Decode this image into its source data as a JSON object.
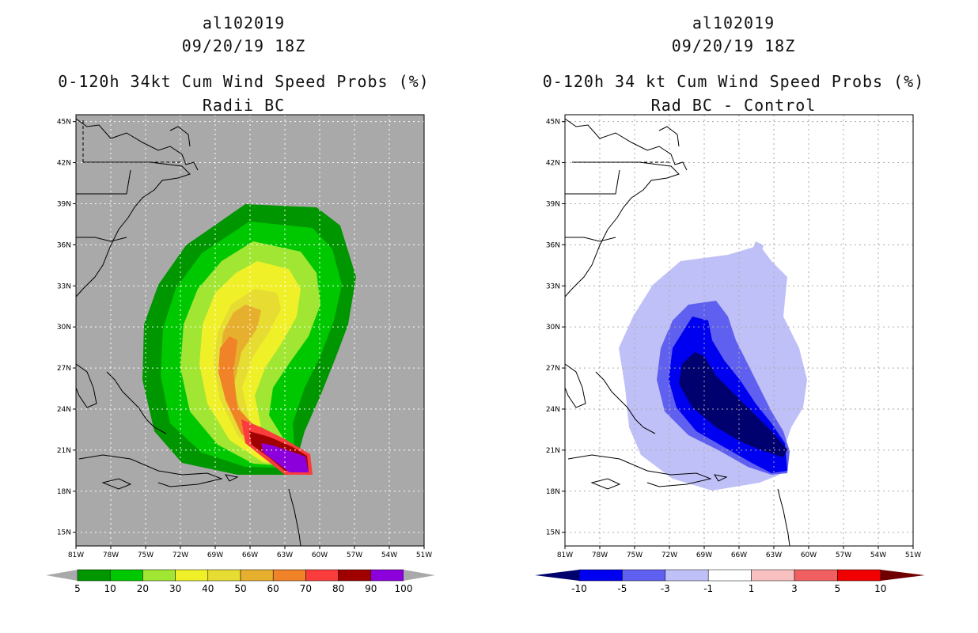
{
  "chart_data": [
    {
      "type": "heatmap",
      "storm_id": "al102019",
      "date": "09/20/19 18Z",
      "title": "0-120h 34kt Cum Wind Speed Probs (%)",
      "subtitle": "Radii BC",
      "x_ticks": [
        "81W",
        "78W",
        "75W",
        "72W",
        "69W",
        "66W",
        "63W",
        "60W",
        "57W",
        "54W",
        "51W"
      ],
      "y_ticks": [
        "45N",
        "42N",
        "39N",
        "36N",
        "33N",
        "30N",
        "27N",
        "24N",
        "21N",
        "18N",
        "15N"
      ],
      "lon_range": [
        -81,
        -51
      ],
      "lat_range": [
        14,
        45.5
      ],
      "grid": true,
      "colorbar": {
        "labels": [
          "5",
          "10",
          "20",
          "30",
          "40",
          "50",
          "60",
          "70",
          "80",
          "90",
          "100"
        ],
        "colors": [
          "#009600",
          "#00c800",
          "#a0e632",
          "#f0f028",
          "#e6dc32",
          "#e6af2d",
          "#f08228",
          "#fa3c3c",
          "#a00000",
          "#8c00dc"
        ]
      },
      "background": "#a9a9a9"
    },
    {
      "type": "heatmap",
      "storm_id": "al102019",
      "date": "09/20/19 18Z",
      "title": "0-120h 34 kt Cum Wind Speed Probs (%)",
      "subtitle": "Rad BC - Control",
      "x_ticks": [
        "81W",
        "78W",
        "75W",
        "72W",
        "69W",
        "66W",
        "63W",
        "60W",
        "57W",
        "54W",
        "51W"
      ],
      "y_ticks": [
        "45N",
        "42N",
        "39N",
        "36N",
        "33N",
        "30N",
        "27N",
        "24N",
        "21N",
        "18N",
        "15N"
      ],
      "lon_range": [
        -81,
        -51
      ],
      "lat_range": [
        14,
        45.5
      ],
      "grid": true,
      "colorbar": {
        "labels": [
          "-10",
          "-5",
          "-3",
          "-1",
          "1",
          "3",
          "5",
          "10"
        ],
        "colors": [
          "#0000f0",
          "#6060f0",
          "#c0c0f8",
          "#ffffff",
          "#f8c0c0",
          "#f06060",
          "#f00000"
        ],
        "low_end": "#00006e",
        "high_end": "#6e0000"
      },
      "background": "#ffffff"
    }
  ]
}
